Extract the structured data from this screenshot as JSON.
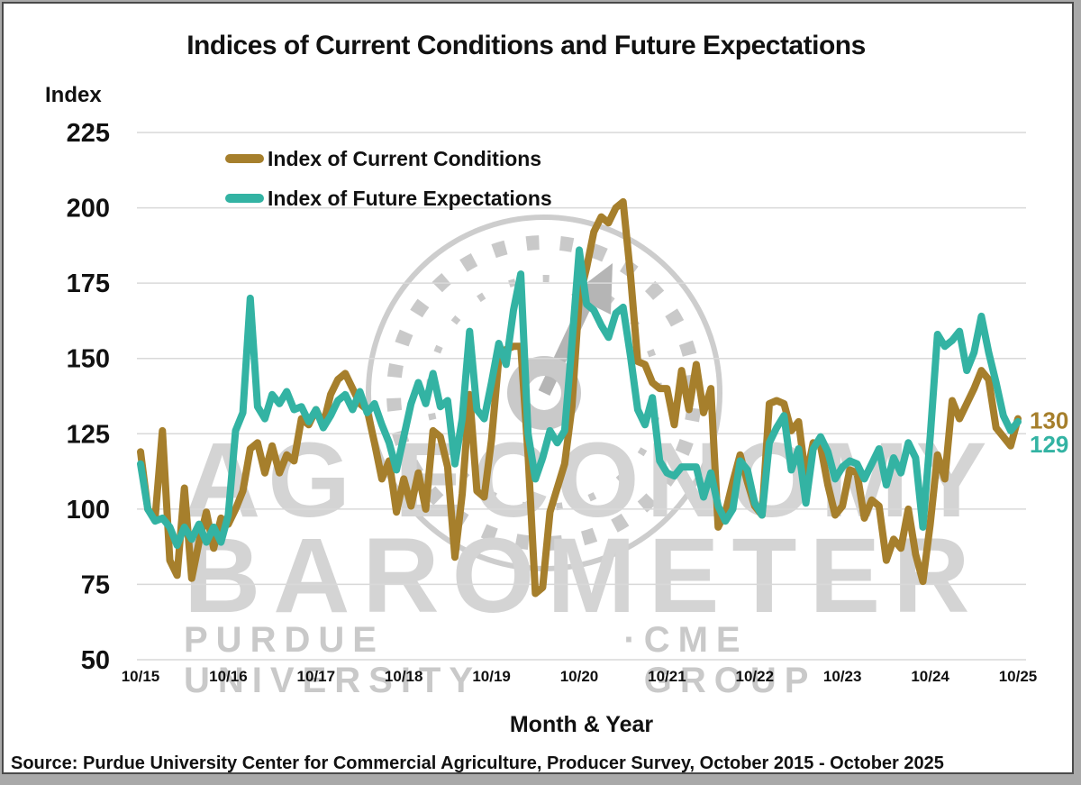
{
  "title": "Indices of Current Conditions and Future Expectations",
  "y_axis": {
    "title": "Index",
    "ticks": [
      225,
      200,
      175,
      150,
      125,
      100,
      75,
      50
    ],
    "min": 50,
    "max": 225
  },
  "x_axis": {
    "title": "Month & Year",
    "tick_labels": [
      "10/15",
      "10/16",
      "10/17",
      "10/18",
      "10/19",
      "10/20",
      "10/21",
      "10/22",
      "10/23",
      "10/24",
      "10/25"
    ]
  },
  "legend": [
    {
      "label": "Index of Current Conditions",
      "color": "#a67f2c"
    },
    {
      "label": "Index of Future Expectations",
      "color": "#33b3a3"
    }
  ],
  "end_labels": {
    "current_conditions": "130",
    "future_expectations": "129"
  },
  "source": "Source: Purdue University Center for Commercial Agriculture, Producer Survey, October 2015 - October 2025",
  "watermark": {
    "line1": "AG ECONOMY",
    "line2": "BAROMETER",
    "footer_left": "PURDUE UNIVERSITY",
    "separator": "·",
    "footer_right": "CME GROUP"
  },
  "colors": {
    "grid": "#d9d9d9",
    "watermark_gray": "#cccccc",
    "text": "#111111"
  },
  "chart_data": {
    "type": "line",
    "title": "Indices of Current Conditions and Future Expectations",
    "xlabel": "Month & Year",
    "ylabel": "Index",
    "ylim": [
      50,
      225
    ],
    "grid": true,
    "legend_position": "top-left-inside",
    "x_tick_labels": [
      "10/15",
      "10/16",
      "10/17",
      "10/18",
      "10/19",
      "10/20",
      "10/21",
      "10/22",
      "10/23",
      "10/24",
      "10/25"
    ],
    "x_monthly": [
      "10/15",
      "11/15",
      "12/15",
      "1/16",
      "2/16",
      "3/16",
      "4/16",
      "5/16",
      "6/16",
      "7/16",
      "8/16",
      "9/16",
      "10/16",
      "11/16",
      "12/16",
      "1/17",
      "2/17",
      "3/17",
      "4/17",
      "5/17",
      "6/17",
      "7/17",
      "8/17",
      "9/17",
      "10/17",
      "11/17",
      "12/17",
      "1/18",
      "2/18",
      "3/18",
      "4/18",
      "5/18",
      "6/18",
      "7/18",
      "8/18",
      "9/18",
      "10/18",
      "11/18",
      "12/18",
      "1/19",
      "2/19",
      "3/19",
      "4/19",
      "5/19",
      "6/19",
      "7/19",
      "8/19",
      "9/19",
      "10/19",
      "11/19",
      "12/19",
      "1/20",
      "2/20",
      "3/20",
      "4/20",
      "5/20",
      "6/20",
      "7/20",
      "8/20",
      "9/20",
      "10/20",
      "11/20",
      "12/20",
      "1/21",
      "2/21",
      "3/21",
      "4/21",
      "5/21",
      "6/21",
      "7/21",
      "8/21",
      "9/21",
      "10/21",
      "11/21",
      "12/21",
      "1/22",
      "2/22",
      "3/22",
      "4/22",
      "5/22",
      "6/22",
      "7/22",
      "8/22",
      "9/22",
      "10/22",
      "11/22",
      "12/22",
      "1/23",
      "2/23",
      "3/23",
      "4/23",
      "5/23",
      "6/23",
      "7/23",
      "8/23",
      "9/23",
      "10/23",
      "11/23",
      "12/23",
      "1/24",
      "2/24",
      "3/24",
      "4/24",
      "5/24",
      "6/24",
      "7/24",
      "8/24",
      "9/24",
      "10/24",
      "11/24",
      "12/24",
      "1/25",
      "2/25",
      "3/25",
      "4/25",
      "5/25",
      "6/25",
      "7/25",
      "8/25",
      "9/25",
      "10/25"
    ],
    "series": [
      {
        "name": "Index of Current Conditions",
        "color": "#a67f2c",
        "end_label": 130,
        "values": [
          119,
          100,
          97,
          126,
          83,
          78,
          107,
          77,
          89,
          99,
          87,
          97,
          95,
          100,
          106,
          120,
          122,
          112,
          121,
          112,
          118,
          116,
          130,
          128,
          133,
          128,
          138,
          143,
          145,
          140,
          135,
          133,
          122,
          110,
          116,
          99,
          110,
          101,
          112,
          100,
          126,
          124,
          114,
          84,
          105,
          138,
          106,
          104,
          123,
          150,
          153,
          154,
          154,
          118,
          72,
          74,
          99,
          107,
          115,
          134,
          170,
          180,
          192,
          197,
          195,
          200,
          202,
          178,
          149,
          148,
          142,
          140,
          140,
          128,
          146,
          133,
          148,
          132,
          140,
          94,
          99,
          109,
          118,
          109,
          101,
          98,
          135,
          136,
          135,
          126,
          129,
          110,
          122,
          121,
          108,
          98,
          101,
          113,
          112,
          97,
          103,
          101,
          83,
          90,
          87,
          100,
          85,
          76,
          95,
          118,
          110,
          136,
          130,
          135,
          140,
          146,
          143,
          127,
          124,
          121,
          130
        ]
      },
      {
        "name": "Index of Future Expectations",
        "color": "#33b3a3",
        "end_label": 129,
        "values": [
          115,
          100,
          96,
          97,
          94,
          88,
          94,
          90,
          95,
          89,
          94,
          89,
          98,
          126,
          132,
          170,
          134,
          130,
          138,
          135,
          139,
          133,
          134,
          129,
          133,
          127,
          131,
          136,
          138,
          133,
          139,
          132,
          135,
          128,
          122,
          113,
          124,
          135,
          142,
          135,
          145,
          134,
          136,
          115,
          130,
          159,
          133,
          130,
          142,
          155,
          148,
          166,
          178,
          125,
          110,
          117,
          126,
          122,
          126,
          155,
          186,
          168,
          166,
          161,
          157,
          165,
          167,
          151,
          133,
          128,
          137,
          116,
          112,
          111,
          114,
          114,
          114,
          104,
          112,
          101,
          96,
          100,
          116,
          113,
          102,
          98,
          122,
          127,
          131,
          113,
          120,
          102,
          120,
          124,
          119,
          110,
          114,
          116,
          115,
          110,
          115,
          120,
          108,
          117,
          112,
          122,
          117,
          94,
          124,
          158,
          154,
          156,
          159,
          146,
          152,
          164,
          152,
          142,
          131,
          126,
          129
        ]
      }
    ]
  }
}
